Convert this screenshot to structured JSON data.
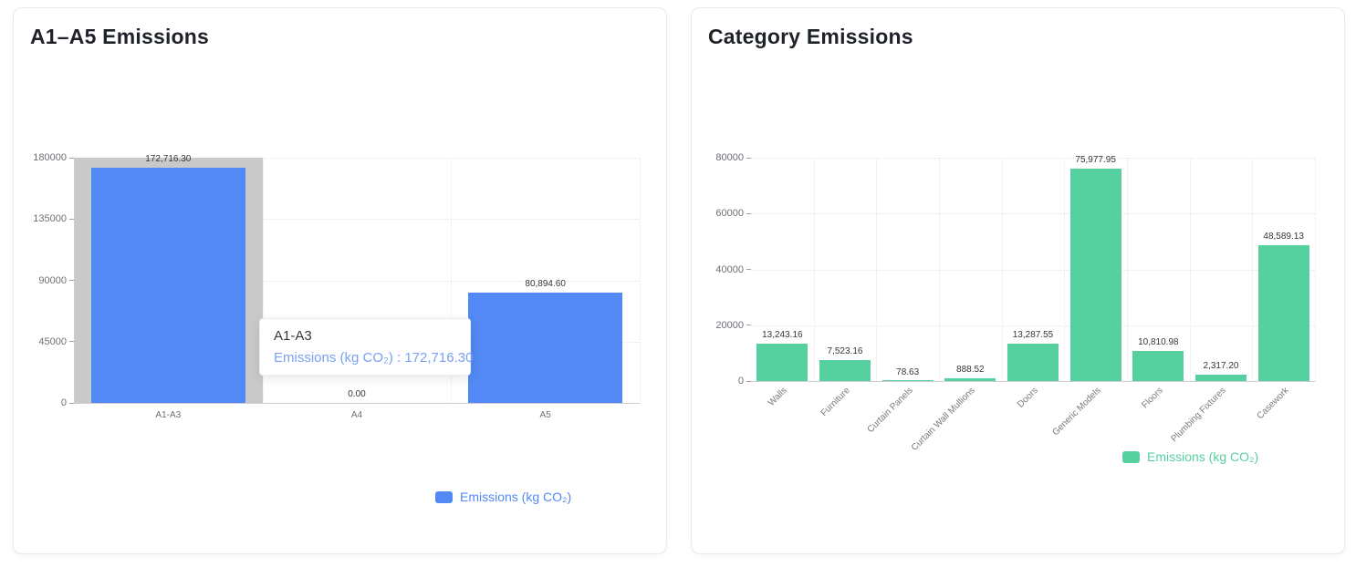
{
  "cards": {
    "left": {
      "title": "A1–A5 Emissions",
      "legend_label": "Emissions (kg CO₂)",
      "tooltip": {
        "title": "A1-A3",
        "text": "Emissions (kg CO₂) : 172,716.30"
      }
    },
    "right": {
      "title": "Category Emissions",
      "legend_label": "Emissions (kg CO₂)"
    }
  },
  "colors": {
    "blue_series": "#5289f4",
    "green_series": "#57d0a0",
    "highlight_band": "#c9c9c9",
    "tooltip_value_text": "#7aa0f2"
  },
  "chart_data": [
    {
      "id": "left",
      "type": "bar",
      "title": "A1–A5 Emissions",
      "categories": [
        "A1-A3",
        "A4",
        "A5"
      ],
      "values": [
        172716.3,
        0.0,
        80894.6
      ],
      "value_labels": [
        "172,716.30",
        "0.00",
        "80,894.60"
      ],
      "series_name": "Emissions (kg CO₂)",
      "ylim": [
        0,
        180000
      ],
      "yticks": [
        0,
        45000,
        90000,
        135000,
        180000
      ],
      "ytick_labels": [
        "0",
        "45000",
        "90000",
        "135000",
        "180000"
      ],
      "bar_color": "#5289f4",
      "highlight_index": 0,
      "highlight_color": "#c9c9c9",
      "x_label_rotate": 0,
      "grid": "dotted",
      "legend_position": "bottom",
      "tooltip": {
        "title": "A1-A3",
        "text": "Emissions (kg CO₂) : 172,716.30"
      }
    },
    {
      "id": "right",
      "type": "bar",
      "title": "Category Emissions",
      "categories": [
        "Walls",
        "Furniture",
        "Curtain Panels",
        "Curtain Wall Mullions",
        "Doors",
        "Generic Models",
        "Floors",
        "Plumbing Fixtures",
        "Casework"
      ],
      "values": [
        13243.16,
        7523.16,
        78.63,
        888.52,
        13287.55,
        75977.95,
        10810.98,
        2317.2,
        48589.13
      ],
      "value_labels": [
        "13,243.16",
        "7,523.16",
        "78.63",
        "888.52",
        "13,287.55",
        "75,977.95",
        "10,810.98",
        "2,317.20",
        "48,589.13"
      ],
      "series_name": "Emissions (kg CO₂)",
      "ylim": [
        0,
        80000
      ],
      "yticks": [
        0,
        20000,
        40000,
        60000,
        80000
      ],
      "ytick_labels": [
        "0",
        "20000",
        "40000",
        "60000",
        "80000"
      ],
      "bar_color": "#57d0a0",
      "highlight_index": null,
      "x_label_rotate": 45,
      "grid": "dotted",
      "legend_position": "bottom"
    }
  ]
}
